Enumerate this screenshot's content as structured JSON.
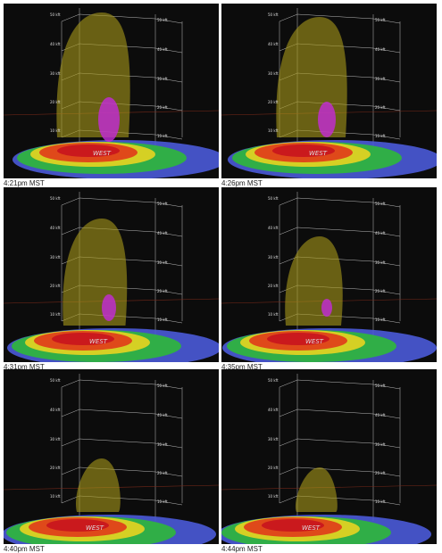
{
  "panels": [
    {
      "caption": "4:21pm MST"
    },
    {
      "caption": "4:26pm MST"
    },
    {
      "caption": "4:31pm MST"
    },
    {
      "caption": "4:35pm MST"
    },
    {
      "caption": "4:40pm MST"
    },
    {
      "caption": "4:44pm MST"
    }
  ],
  "altitude_labels": [
    "50 kft",
    "40 kft",
    "30 kft",
    "20 kft",
    "10 kft"
  ],
  "place_label": "WEST"
}
